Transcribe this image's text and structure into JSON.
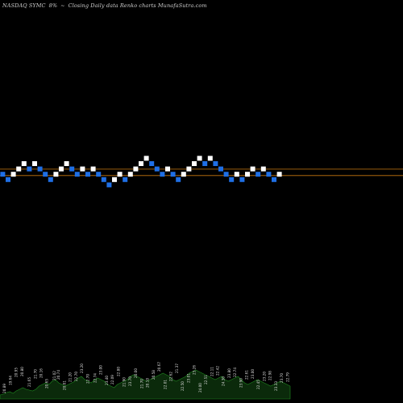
{
  "header": {
    "ticker": "NASDAQ SYMC",
    "change": "8%",
    "arrow": "~",
    "caption": "Closing Daily data Renko charts MunafaSutra.com"
  },
  "colors": {
    "background": "#000000",
    "up_brick": "#ffffff",
    "down_brick": "#1f6fe5",
    "reference_line": "#c8780f",
    "volume_fill": "#0b2a0b",
    "volume_stroke": "#1f8a1f",
    "label_text": "#dddddd"
  },
  "chart_data": {
    "type": "renko",
    "title": "NASDAQ SYMC 8% Closing Daily data Renko charts",
    "reference_levels": [
      1,
      0
    ],
    "bricks": [
      {
        "level": 0,
        "dir": "down"
      },
      {
        "level": -1,
        "dir": "down"
      },
      {
        "level": 0,
        "dir": "up"
      },
      {
        "level": 1,
        "dir": "up"
      },
      {
        "level": 2,
        "dir": "up"
      },
      {
        "level": 1,
        "dir": "down"
      },
      {
        "level": 2,
        "dir": "up"
      },
      {
        "level": 1,
        "dir": "down"
      },
      {
        "level": 0,
        "dir": "down"
      },
      {
        "level": -1,
        "dir": "down"
      },
      {
        "level": 0,
        "dir": "up"
      },
      {
        "level": 1,
        "dir": "up"
      },
      {
        "level": 2,
        "dir": "up"
      },
      {
        "level": 1,
        "dir": "down"
      },
      {
        "level": 0,
        "dir": "down"
      },
      {
        "level": 1,
        "dir": "up"
      },
      {
        "level": 0,
        "dir": "down"
      },
      {
        "level": 1,
        "dir": "up"
      },
      {
        "level": 0,
        "dir": "down"
      },
      {
        "level": -1,
        "dir": "down"
      },
      {
        "level": -2,
        "dir": "down"
      },
      {
        "level": -1,
        "dir": "up"
      },
      {
        "level": 0,
        "dir": "up"
      },
      {
        "level": -1,
        "dir": "down"
      },
      {
        "level": 0,
        "dir": "up"
      },
      {
        "level": 1,
        "dir": "up"
      },
      {
        "level": 2,
        "dir": "up"
      },
      {
        "level": 3,
        "dir": "up"
      },
      {
        "level": 2,
        "dir": "down"
      },
      {
        "level": 1,
        "dir": "down"
      },
      {
        "level": 0,
        "dir": "down"
      },
      {
        "level": 1,
        "dir": "up"
      },
      {
        "level": 0,
        "dir": "down"
      },
      {
        "level": -1,
        "dir": "down"
      },
      {
        "level": 0,
        "dir": "up"
      },
      {
        "level": 1,
        "dir": "up"
      },
      {
        "level": 2,
        "dir": "up"
      },
      {
        "level": 3,
        "dir": "up"
      },
      {
        "level": 2,
        "dir": "down"
      },
      {
        "level": 3,
        "dir": "up"
      },
      {
        "level": 2,
        "dir": "down"
      },
      {
        "level": 1,
        "dir": "down"
      },
      {
        "level": 0,
        "dir": "down"
      },
      {
        "level": -1,
        "dir": "down"
      },
      {
        "level": 0,
        "dir": "up"
      },
      {
        "level": -1,
        "dir": "down"
      },
      {
        "level": 0,
        "dir": "up"
      },
      {
        "level": 1,
        "dir": "up"
      },
      {
        "level": 0,
        "dir": "down"
      },
      {
        "level": 1,
        "dir": "up"
      },
      {
        "level": 0,
        "dir": "down"
      },
      {
        "level": -1,
        "dir": "down"
      },
      {
        "level": 0,
        "dir": "up"
      }
    ],
    "volume": [
      2.5,
      3,
      4,
      4.5,
      3.5,
      5,
      6,
      7,
      6,
      5.5,
      5,
      6,
      8,
      9,
      10,
      9,
      11,
      12,
      10,
      9,
      8,
      9,
      10,
      11,
      13,
      14,
      12,
      11,
      10,
      12,
      13,
      12,
      11,
      9,
      8,
      7,
      9,
      10,
      11,
      12,
      14,
      15,
      14,
      13,
      12,
      11,
      12,
      13,
      14,
      15,
      16,
      15,
      14,
      12,
      11,
      12,
      13,
      14,
      16,
      17,
      18,
      17,
      16,
      15,
      14,
      13,
      12,
      13,
      14,
      12,
      11,
      12,
      13,
      14,
      12,
      10,
      9,
      10,
      11,
      12,
      11,
      10,
      9,
      8,
      9,
      10,
      11,
      10,
      9,
      8
    ],
    "price_labels": [
      {
        "text": "20.89",
        "pos": 0.02
      },
      {
        "text": "19.64",
        "pos": 0.04
      },
      {
        "text": "20.95",
        "pos": 0.06
      },
      {
        "text": "20.80",
        "pos": 0.08
      },
      {
        "text": "21.65",
        "pos": 0.105
      },
      {
        "text": "21.70",
        "pos": 0.125
      },
      {
        "text": "20.16",
        "pos": 0.145
      },
      {
        "text": "20.65",
        "pos": 0.165
      },
      {
        "text": "21.02",
        "pos": 0.19
      },
      {
        "text": "20.74",
        "pos": 0.205
      },
      {
        "text": "20.01",
        "pos": 0.225
      },
      {
        "text": "21.20",
        "pos": 0.245
      },
      {
        "text": "22.70",
        "pos": 0.265
      },
      {
        "text": "23.20",
        "pos": 0.285
      },
      {
        "text": "22.70",
        "pos": 0.305
      },
      {
        "text": "22.74",
        "pos": 0.33
      },
      {
        "text": "23.00",
        "pos": 0.35
      },
      {
        "text": "23.40",
        "pos": 0.37
      },
      {
        "text": "22.09",
        "pos": 0.39
      },
      {
        "text": "22.80",
        "pos": 0.41
      },
      {
        "text": "21.90",
        "pos": 0.43
      },
      {
        "text": "23.70",
        "pos": 0.45
      },
      {
        "text": "20.00",
        "pos": 0.47
      },
      {
        "text": "21.70",
        "pos": 0.49
      },
      {
        "text": "20.10",
        "pos": 0.51
      },
      {
        "text": "20.58",
        "pos": 0.53
      },
      {
        "text": "20.67",
        "pos": 0.55
      },
      {
        "text": "22.01",
        "pos": 0.57
      },
      {
        "text": "22.62",
        "pos": 0.59
      },
      {
        "text": "21.37",
        "pos": 0.61
      },
      {
        "text": "22.50",
        "pos": 0.63
      },
      {
        "text": "23.01",
        "pos": 0.65
      },
      {
        "text": "23.26",
        "pos": 0.67
      },
      {
        "text": "24.00",
        "pos": 0.69
      },
      {
        "text": "22.51",
        "pos": 0.71
      },
      {
        "text": "22.11",
        "pos": 0.73
      },
      {
        "text": "22.42",
        "pos": 0.75
      },
      {
        "text": "24.30",
        "pos": 0.77
      },
      {
        "text": "23.80",
        "pos": 0.79
      },
      {
        "text": "22.74",
        "pos": 0.81
      },
      {
        "text": "23.90",
        "pos": 0.83
      },
      {
        "text": "22.61",
        "pos": 0.85
      },
      {
        "text": "23.00",
        "pos": 0.87
      },
      {
        "text": "22.45",
        "pos": 0.89
      },
      {
        "text": "23.20",
        "pos": 0.91
      },
      {
        "text": "22.98",
        "pos": 0.93
      },
      {
        "text": "23.33",
        "pos": 0.95
      },
      {
        "text": "23.70",
        "pos": 0.97
      },
      {
        "text": "22.79",
        "pos": 0.99
      }
    ]
  }
}
